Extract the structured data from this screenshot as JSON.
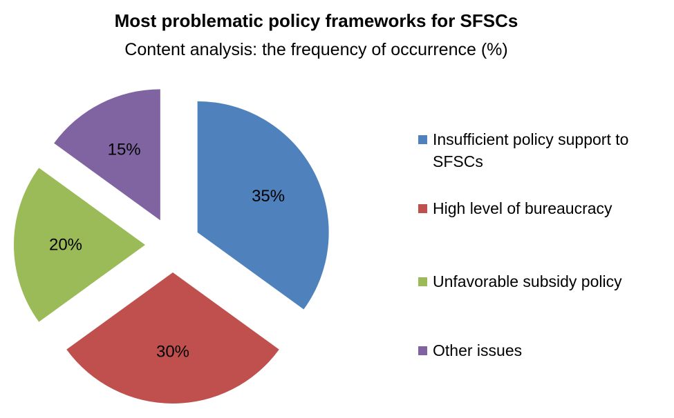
{
  "chart_data": {
    "type": "pie",
    "title": "Most problematic policy frameworks for SFSCs",
    "subtitle": "Content analysis: the frequency of occurrence (%)",
    "categories": [
      "Insufficient policy support to SFSCs",
      "High level of bureaucracy",
      "Unfavorable subsidy policy",
      "Other issues"
    ],
    "values": [
      35,
      30,
      20,
      15
    ],
    "data_labels": [
      "35%",
      "30%",
      "20%",
      "15%"
    ],
    "colors": [
      "#4F81BD",
      "#C0504D",
      "#9BBB59",
      "#8064A2"
    ],
    "exploded": true,
    "legend_position": "right"
  }
}
